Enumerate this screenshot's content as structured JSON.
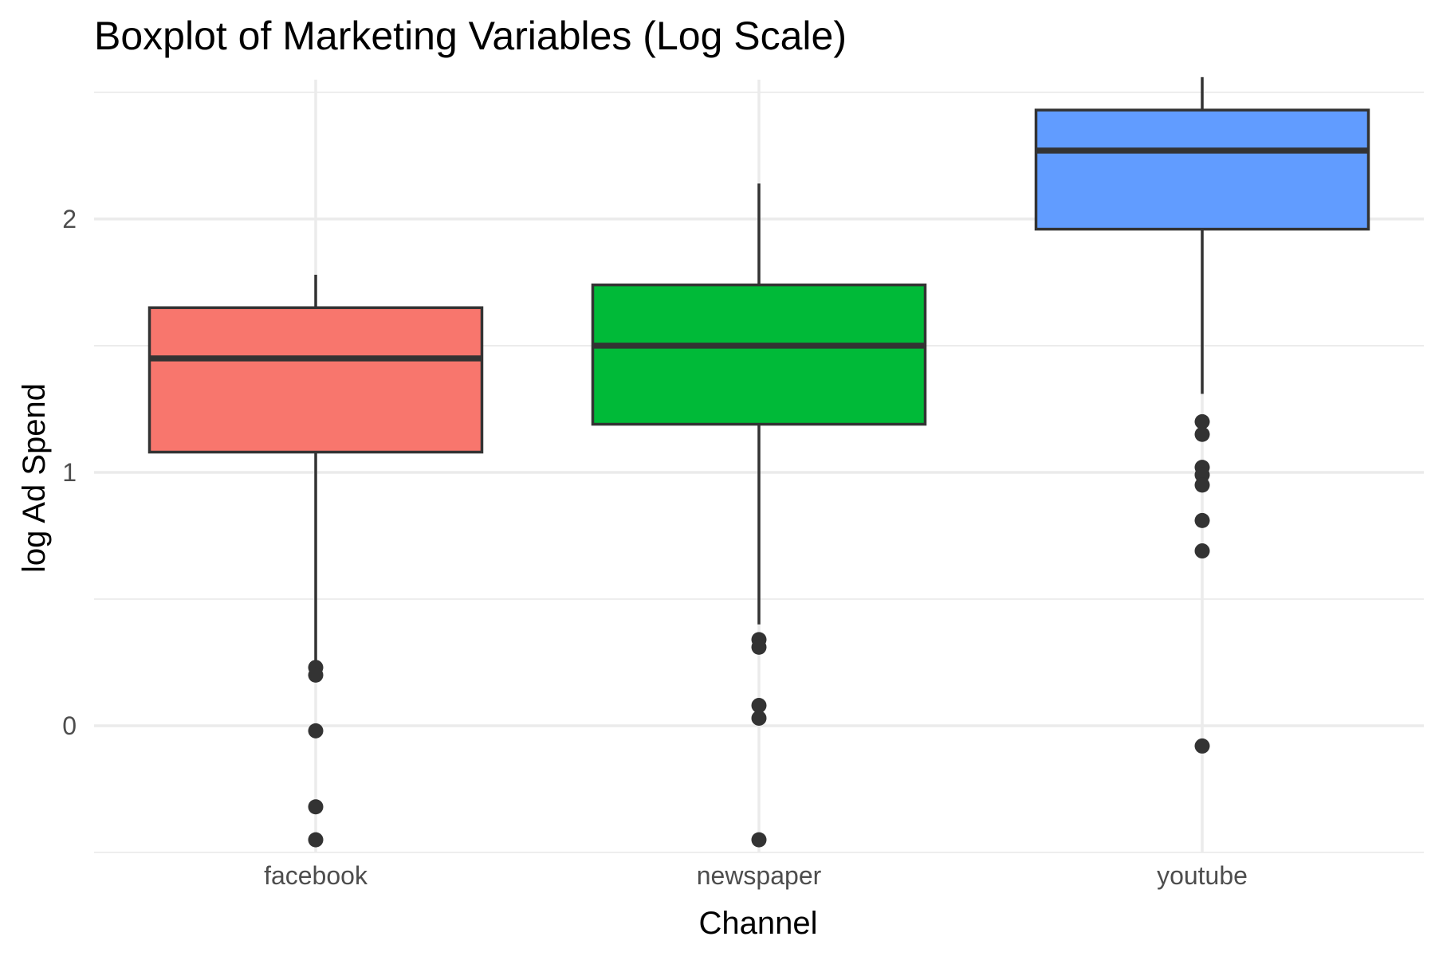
{
  "chart_data": {
    "type": "boxplot",
    "title": "Boxplot of Marketing Variables (Log Scale)",
    "xlabel": "Channel",
    "ylabel": "log Ad Spend",
    "ylim": [
      -0.5,
      2.55
    ],
    "y_ticks": [
      {
        "value": 0,
        "label": "0"
      },
      {
        "value": 1,
        "label": "1"
      },
      {
        "value": 2,
        "label": "2"
      }
    ],
    "grid": true,
    "legend": "none",
    "categories": [
      "facebook",
      "newspaper",
      "youtube"
    ],
    "series": [
      {
        "category": "facebook",
        "color": "#F8766D",
        "q1": 1.08,
        "median": 1.45,
        "q3": 1.65,
        "whisker_low": 0.23,
        "whisker_high": 1.78,
        "outliers": [
          0.23,
          0.2,
          -0.02,
          -0.32,
          -0.45
        ]
      },
      {
        "category": "newspaper",
        "color": "#00BA38",
        "q1": 1.19,
        "median": 1.5,
        "q3": 1.74,
        "whisker_low": 0.4,
        "whisker_high": 2.14,
        "outliers": [
          0.34,
          0.31,
          0.08,
          0.03,
          -0.45
        ]
      },
      {
        "category": "youtube",
        "color": "#619CFF",
        "q1": 1.96,
        "median": 2.27,
        "q3": 2.43,
        "whisker_low": 1.31,
        "whisker_high": 2.56,
        "outliers": [
          1.2,
          1.15,
          1.02,
          0.99,
          0.95,
          0.81,
          0.69,
          -0.08
        ]
      }
    ]
  }
}
